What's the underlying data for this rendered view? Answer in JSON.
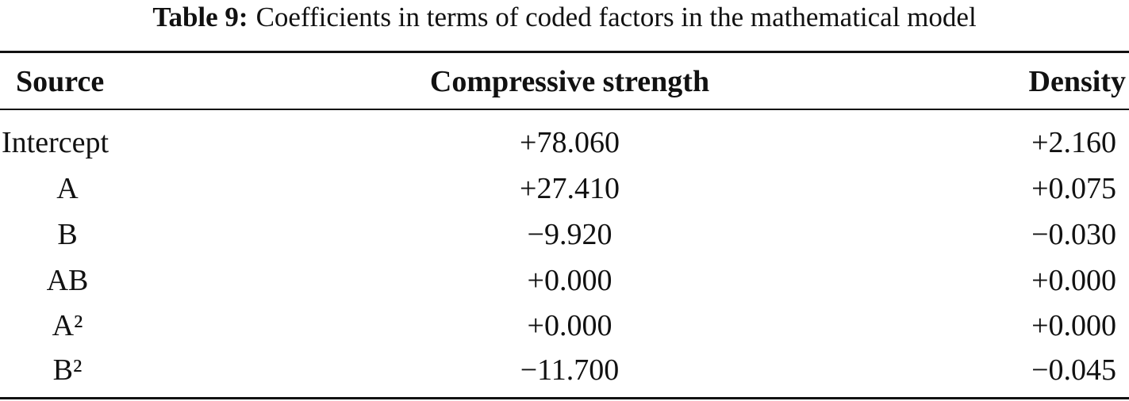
{
  "caption": {
    "label": "Table 9:",
    "text": "Coefficients in terms of coded factors in the mathematical model"
  },
  "table": {
    "header": [
      "Source",
      "Compressive strength",
      "Density"
    ],
    "rows": [
      [
        "Intercept",
        "+78.060",
        "+2.160"
      ],
      [
        "A",
        "+27.410",
        "+0.075"
      ],
      [
        "B",
        "−9.920",
        "−0.030"
      ],
      [
        "AB",
        "+0.000",
        "+0.000"
      ],
      [
        "A²",
        "+0.000",
        "+0.000"
      ],
      [
        "B²",
        "−11.700",
        "−0.045"
      ]
    ]
  }
}
